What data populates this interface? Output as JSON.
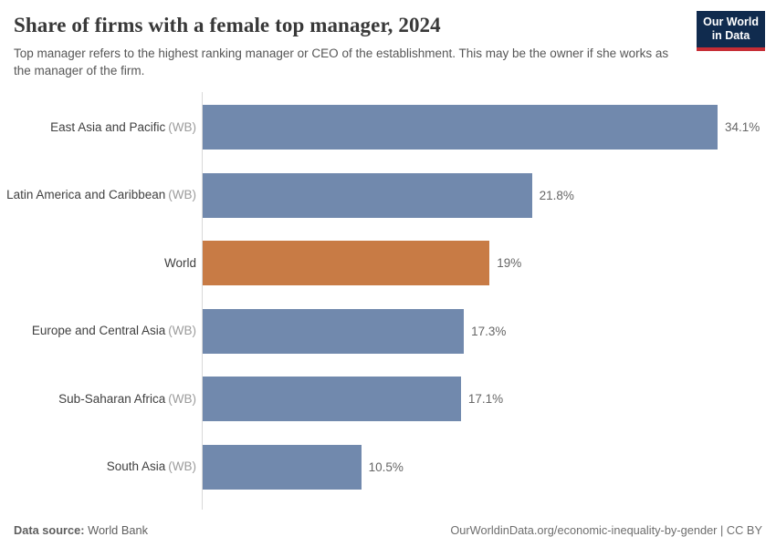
{
  "header": {
    "title": "Share of firms with a female top manager, 2024",
    "subtitle": "Top manager refers to the highest ranking manager or CEO of the establishment. This may be the owner if she works as the manager of the firm.",
    "logo": {
      "line1": "Our World",
      "line2": "in Data"
    }
  },
  "chart_data": {
    "type": "bar",
    "orientation": "horizontal",
    "unit": "%",
    "title": "Share of firms with a female top manager, 2024",
    "xlabel": "",
    "ylabel": "",
    "xlim": [
      0,
      38
    ],
    "grid": false,
    "legend": "none",
    "categories": [
      "East Asia and Pacific (WB)",
      "Latin America and Caribbean (WB)",
      "World",
      "Europe and Central Asia (WB)",
      "Sub-Saharan Africa (WB)",
      "South Asia (WB)"
    ],
    "values": [
      34.1,
      21.8,
      19,
      17.3,
      17.1,
      10.5
    ],
    "bars": [
      {
        "label": "East Asia and Pacific",
        "suffix": "(WB)",
        "value": 34.1,
        "display": "34.1%",
        "highlight": false
      },
      {
        "label": "Latin America and Caribbean",
        "suffix": "(WB)",
        "value": 21.8,
        "display": "21.8%",
        "highlight": false
      },
      {
        "label": "World",
        "suffix": "",
        "value": 19,
        "display": "19%",
        "highlight": true
      },
      {
        "label": "Europe and Central Asia",
        "suffix": "(WB)",
        "value": 17.3,
        "display": "17.3%",
        "highlight": false
      },
      {
        "label": "Sub-Saharan Africa",
        "suffix": "(WB)",
        "value": 17.1,
        "display": "17.1%",
        "highlight": false
      },
      {
        "label": "South Asia",
        "suffix": "(WB)",
        "value": 10.5,
        "display": "10.5%",
        "highlight": false
      }
    ],
    "colors": {
      "bar": "#7189ad",
      "highlight": "#c87b45",
      "axis": "#d9d9d9"
    }
  },
  "footer": {
    "source_label": "Data source:",
    "source_value": "World Bank",
    "url_text": "OurWorldinData.org/economic-inequality-by-gender | CC BY"
  }
}
